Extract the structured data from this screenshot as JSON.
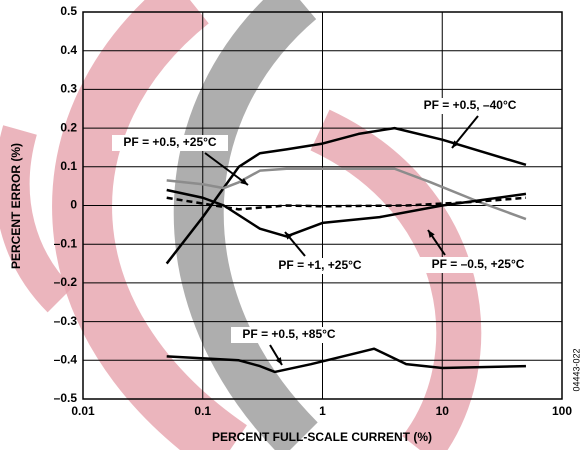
{
  "chart_data": {
    "type": "line",
    "xlabel": "PERCENT FULL-SCALE CURRENT (%)",
    "ylabel": "PERCENT ERROR (%)",
    "figure_code": "04443-022",
    "xscale": "log",
    "grid": true,
    "xlim": [
      0.01,
      100
    ],
    "xticks": [
      0.01,
      0.1,
      1,
      10,
      100
    ],
    "ylim": [
      -0.5,
      0.5
    ],
    "yticks": [
      0.5,
      0.4,
      0.3,
      0.2,
      0.1,
      0,
      {
        "value": -0.1,
        "label": "–0.1"
      },
      {
        "value": -0.2,
        "label": "–0.2"
      },
      {
        "value": -0.3,
        "label": "–0.3"
      },
      {
        "value": -0.4,
        "label": "–0.4"
      },
      {
        "value": -0.5,
        "label": "–0.5"
      }
    ],
    "series": [
      {
        "name": "PF = +0.5, –40°C",
        "color": "#000000",
        "dashed": false,
        "x": [
          0.05,
          0.1,
          0.2,
          0.3,
          0.5,
          1,
          2,
          4,
          10,
          50
        ],
        "values": [
          -0.15,
          -0.03,
          0.1,
          0.135,
          0.145,
          0.16,
          0.185,
          0.2,
          0.17,
          0.105
        ]
      },
      {
        "name": "PF = +0.5, +25°C",
        "color": "#8c8c8c",
        "dashed": false,
        "x": [
          0.05,
          0.1,
          0.15,
          0.2,
          0.3,
          0.5,
          1,
          4,
          8,
          20,
          50
        ],
        "values": [
          0.065,
          0.055,
          0.045,
          0.06,
          0.09,
          0.095,
          0.095,
          0.095,
          0.06,
          0.01,
          -0.035
        ]
      },
      {
        "name": "PF = +1, +25°C",
        "color": "#000000",
        "dashed": false,
        "x": [
          0.05,
          0.1,
          0.15,
          0.3,
          0.5,
          1,
          3,
          10,
          50
        ],
        "values": [
          0.04,
          0.02,
          0.0,
          -0.06,
          -0.08,
          -0.045,
          -0.03,
          0.0,
          0.03
        ]
      },
      {
        "name": "PF = –0.5, +25°C",
        "color": "#000000",
        "dashed": true,
        "x": [
          0.05,
          0.1,
          0.2,
          0.5,
          1,
          5,
          20,
          50
        ],
        "values": [
          0.02,
          0.005,
          -0.01,
          0.0,
          -0.002,
          0.0,
          0.01,
          0.02
        ]
      },
      {
        "name": "PF = +0.5, +85°C",
        "color": "#000000",
        "dashed": false,
        "x": [
          0.05,
          0.2,
          0.3,
          0.4,
          0.8,
          2,
          2.7,
          5,
          10,
          50
        ],
        "values": [
          -0.39,
          -0.4,
          -0.415,
          -0.43,
          -0.41,
          -0.38,
          -0.37,
          -0.41,
          -0.42,
          -0.415
        ]
      }
    ]
  }
}
